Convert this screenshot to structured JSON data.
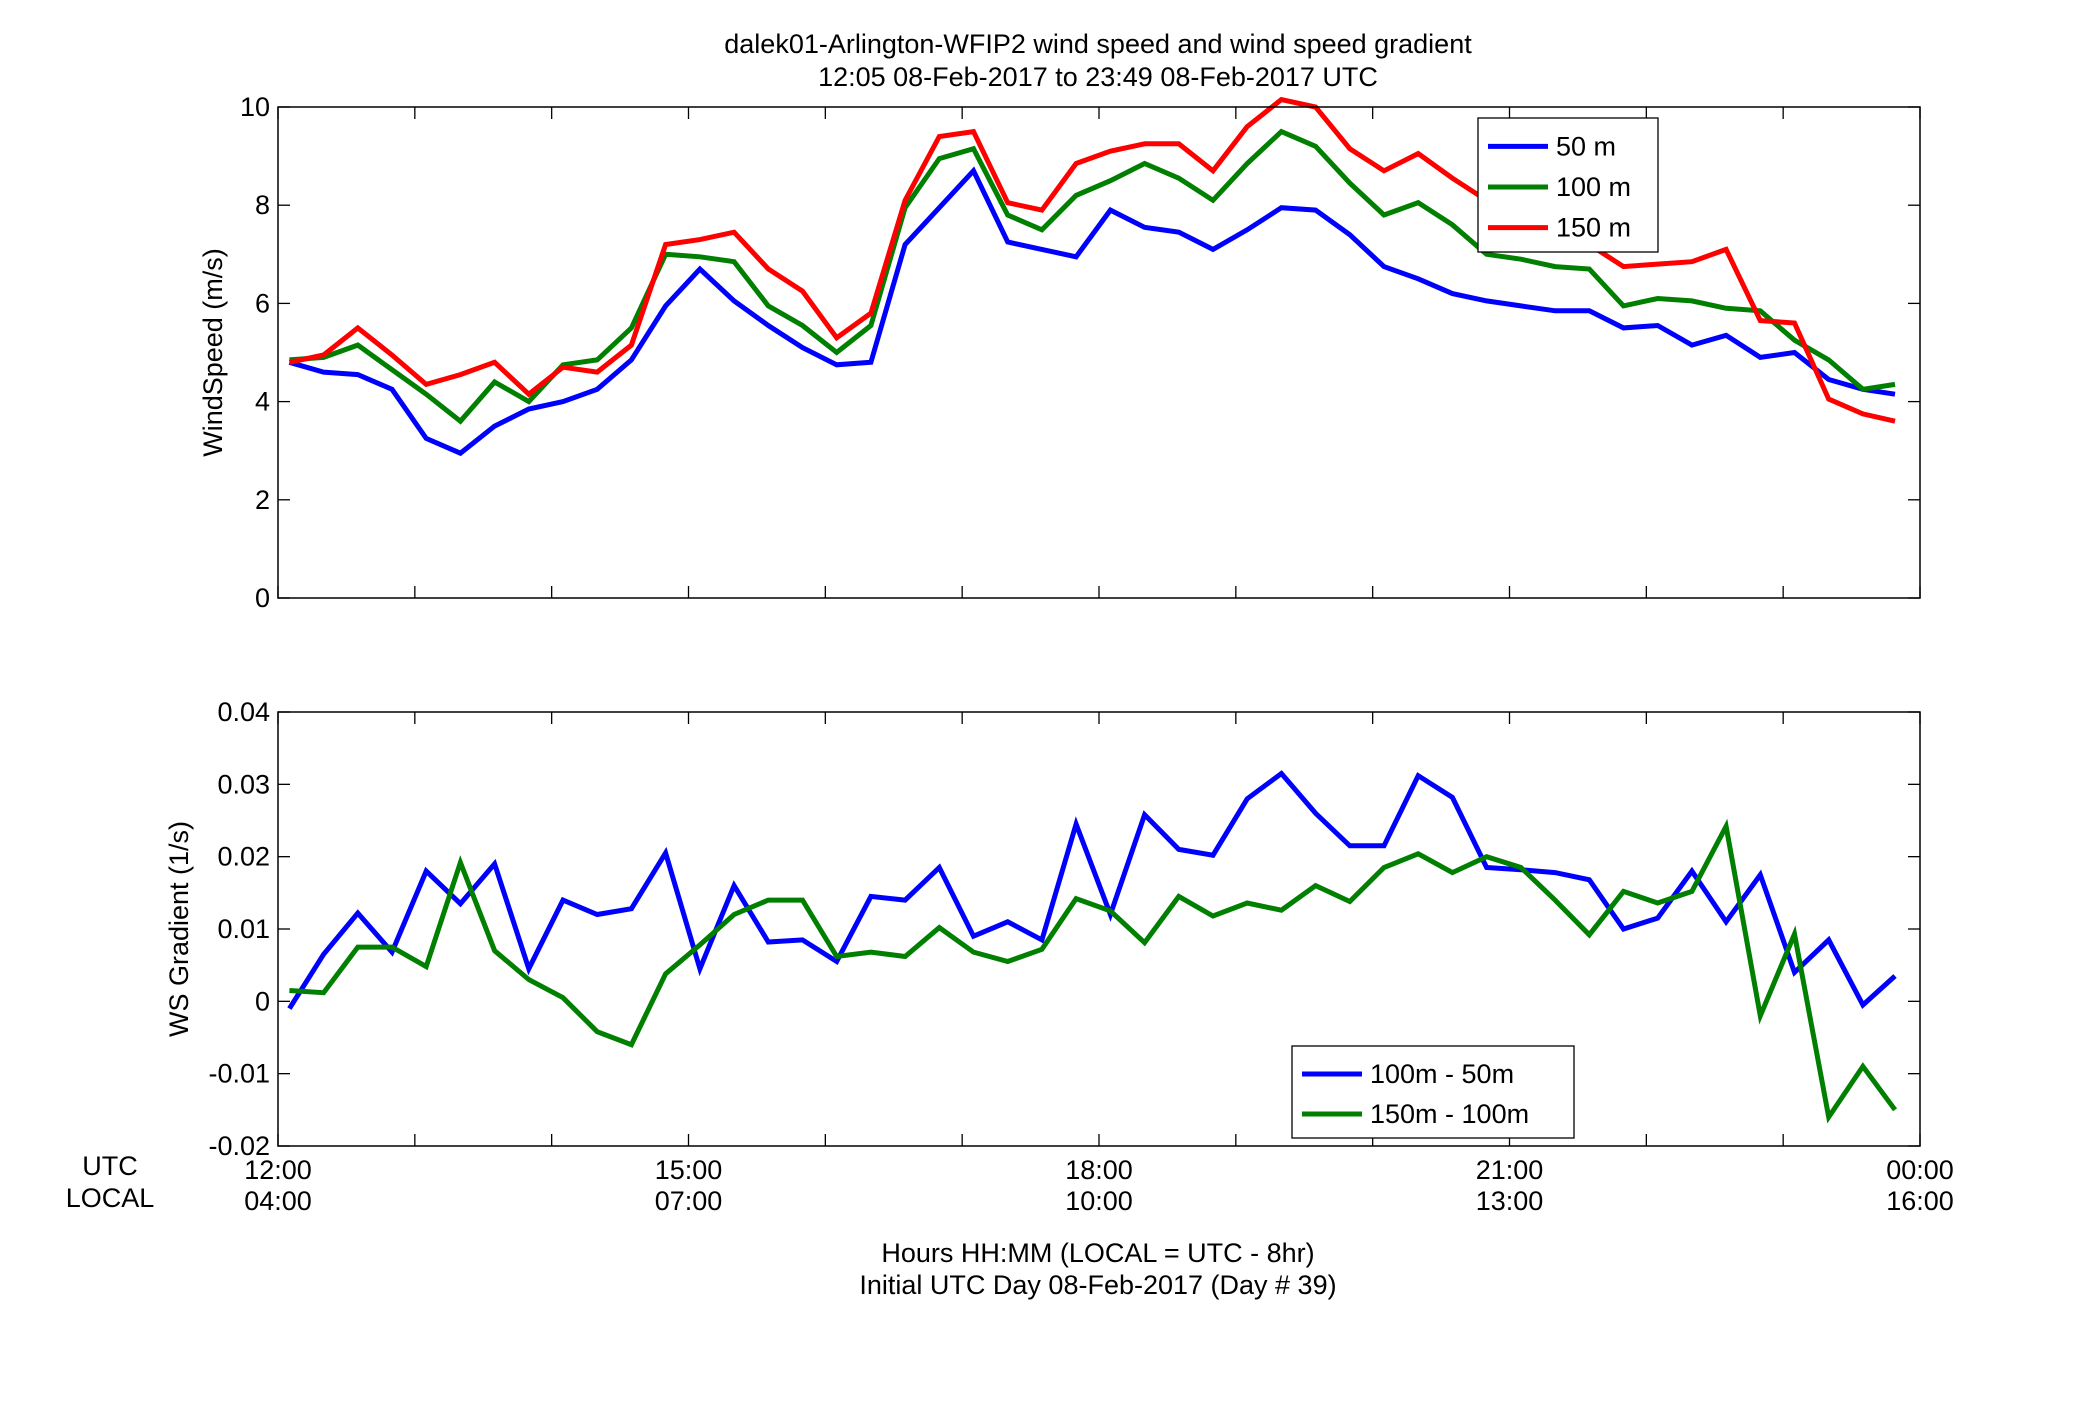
{
  "title_line1": "dalek01-Arlington-WFIP2  wind speed and wind speed gradient",
  "title_line2": "12:05 08-Feb-2017 to 23:49 08-Feb-2017  UTC",
  "row_label_utc": "UTC",
  "row_label_local": "LOCAL",
  "xlabel_line1": "Hours HH:MM  (LOCAL = UTC - 8hr)",
  "xlabel_line2": "Initial UTC Day 08-Feb-2017 (Day # 39)",
  "chart_data": [
    {
      "type": "line",
      "ylabel": "WindSpeed (m/s)",
      "ylim": [
        0,
        10
      ],
      "yticks": [
        "0",
        "2",
        "4",
        "6",
        "8",
        "10"
      ],
      "xlim_hours": [
        12,
        24
      ],
      "xticks_utc": [
        "12:00",
        "15:00",
        "18:00",
        "21:00",
        "00:00"
      ],
      "xticks_local": [
        "04:00",
        "07:00",
        "10:00",
        "13:00",
        "16:00"
      ],
      "legend_position": "top-right",
      "x_hours_utc": [
        12.083,
        12.333,
        12.583,
        12.833,
        13.083,
        13.333,
        13.583,
        13.833,
        14.083,
        14.333,
        14.583,
        14.833,
        15.083,
        15.333,
        15.583,
        15.833,
        16.083,
        16.333,
        16.583,
        16.833,
        17.083,
        17.333,
        17.583,
        17.833,
        18.083,
        18.333,
        18.583,
        18.833,
        19.083,
        19.333,
        19.583,
        19.833,
        20.083,
        20.333,
        20.583,
        20.833,
        21.083,
        21.333,
        21.583,
        21.833,
        22.083,
        22.333,
        22.583,
        22.833,
        23.083,
        23.333,
        23.583,
        23.817
      ],
      "series": [
        {
          "name": "50 m",
          "color": "#0000ff",
          "values": [
            4.8,
            4.6,
            4.55,
            4.25,
            3.25,
            2.95,
            3.5,
            3.85,
            4.0,
            4.25,
            4.85,
            5.95,
            6.7,
            6.05,
            5.55,
            5.1,
            4.75,
            4.8,
            7.2,
            7.95,
            8.7,
            7.25,
            7.1,
            6.95,
            7.9,
            7.55,
            7.45,
            7.1,
            7.5,
            7.95,
            7.9,
            7.4,
            6.75,
            6.5,
            6.2,
            6.05,
            5.95,
            5.85,
            5.85,
            5.5,
            5.55,
            5.15,
            5.35,
            4.9,
            5.0,
            4.45,
            4.25,
            4.15
          ]
        },
        {
          "name": "100 m",
          "color": "#007f00",
          "values": [
            4.85,
            4.9,
            5.15,
            4.65,
            4.15,
            3.6,
            4.4,
            4.0,
            4.75,
            4.85,
            5.5,
            7.0,
            6.95,
            6.85,
            5.95,
            5.55,
            5.0,
            5.55,
            7.95,
            8.95,
            9.15,
            7.8,
            7.5,
            8.2,
            8.5,
            8.85,
            8.55,
            8.1,
            8.85,
            9.5,
            9.2,
            8.45,
            7.8,
            8.05,
            7.6,
            7.0,
            6.9,
            6.75,
            6.7,
            5.95,
            6.1,
            6.05,
            5.9,
            5.85,
            5.25,
            4.85,
            4.25,
            4.35
          ]
        },
        {
          "name": "150 m",
          "color": "#ff0000",
          "values": [
            4.8,
            4.95,
            5.5,
            4.95,
            4.35,
            4.55,
            4.8,
            4.15,
            4.7,
            4.6,
            5.15,
            7.2,
            7.3,
            7.45,
            6.7,
            6.25,
            5.3,
            5.8,
            8.1,
            9.4,
            9.5,
            8.05,
            7.9,
            8.85,
            9.1,
            9.25,
            9.25,
            8.7,
            9.6,
            10.15,
            10.0,
            9.15,
            8.7,
            9.05,
            8.55,
            8.1,
            7.8,
            7.5,
            7.2,
            6.75,
            6.8,
            6.85,
            7.1,
            5.65,
            5.6,
            4.05,
            3.75,
            3.6
          ]
        }
      ]
    },
    {
      "type": "line",
      "ylabel": "WS Gradient (1/s)",
      "ylim": [
        -0.02,
        0.04
      ],
      "yticks": [
        "-0.02",
        "-0.01",
        "0",
        "0.01",
        "0.02",
        "0.03",
        "0.04"
      ],
      "xlim_hours": [
        12,
        24
      ],
      "xticks_utc": [
        "12:00",
        "15:00",
        "18:00",
        "21:00",
        "00:00"
      ],
      "xticks_local": [
        "04:00",
        "07:00",
        "10:00",
        "13:00",
        "16:00"
      ],
      "legend_position": "bottom-right",
      "x_hours_utc": [
        12.083,
        12.333,
        12.583,
        12.833,
        13.083,
        13.333,
        13.583,
        13.833,
        14.083,
        14.333,
        14.583,
        14.833,
        15.083,
        15.333,
        15.583,
        15.833,
        16.083,
        16.333,
        16.583,
        16.833,
        17.083,
        17.333,
        17.583,
        17.833,
        18.083,
        18.333,
        18.583,
        18.833,
        19.083,
        19.333,
        19.583,
        19.833,
        20.083,
        20.333,
        20.583,
        20.833,
        21.083,
        21.333,
        21.583,
        21.833,
        22.083,
        22.333,
        22.583,
        22.833,
        23.083,
        23.333,
        23.583,
        23.817
      ],
      "series": [
        {
          "name": "100m - 50m",
          "color": "#0000ff",
          "values": [
            -0.001,
            0.0065,
            0.0122,
            0.0068,
            0.018,
            0.0135,
            0.019,
            0.0045,
            0.014,
            0.012,
            0.0128,
            0.0205,
            0.0045,
            0.016,
            0.0082,
            0.0085,
            0.0055,
            0.0145,
            0.014,
            0.0185,
            0.009,
            0.011,
            0.0085,
            0.0245,
            0.012,
            0.0258,
            0.021,
            0.0202,
            0.028,
            0.0315,
            0.026,
            0.0215,
            0.0215,
            0.0312,
            0.0282,
            0.0185,
            0.0182,
            0.0178,
            0.0168,
            0.01,
            0.0115,
            0.018,
            0.011,
            0.0175,
            0.004,
            0.0085,
            -0.0005,
            0.0035
          ]
        },
        {
          "name": "150m - 100m",
          "color": "#007f00",
          "values": [
            0.0015,
            0.0012,
            0.0075,
            0.0075,
            0.0048,
            0.0192,
            0.007,
            0.003,
            0.0005,
            -0.0042,
            -0.006,
            0.0038,
            0.0078,
            0.012,
            0.014,
            0.014,
            0.0062,
            0.0068,
            0.0062,
            0.0102,
            0.0068,
            0.0055,
            0.0072,
            0.0142,
            0.0125,
            0.0081,
            0.0145,
            0.0118,
            0.0136,
            0.0126,
            0.016,
            0.0138,
            0.0185,
            0.0204,
            0.0178,
            0.02,
            0.0185,
            0.014,
            0.0092,
            0.0152,
            0.0136,
            0.0152,
            0.0242,
            -0.002,
            0.0093,
            -0.016,
            -0.009,
            -0.015
          ]
        }
      ]
    }
  ]
}
